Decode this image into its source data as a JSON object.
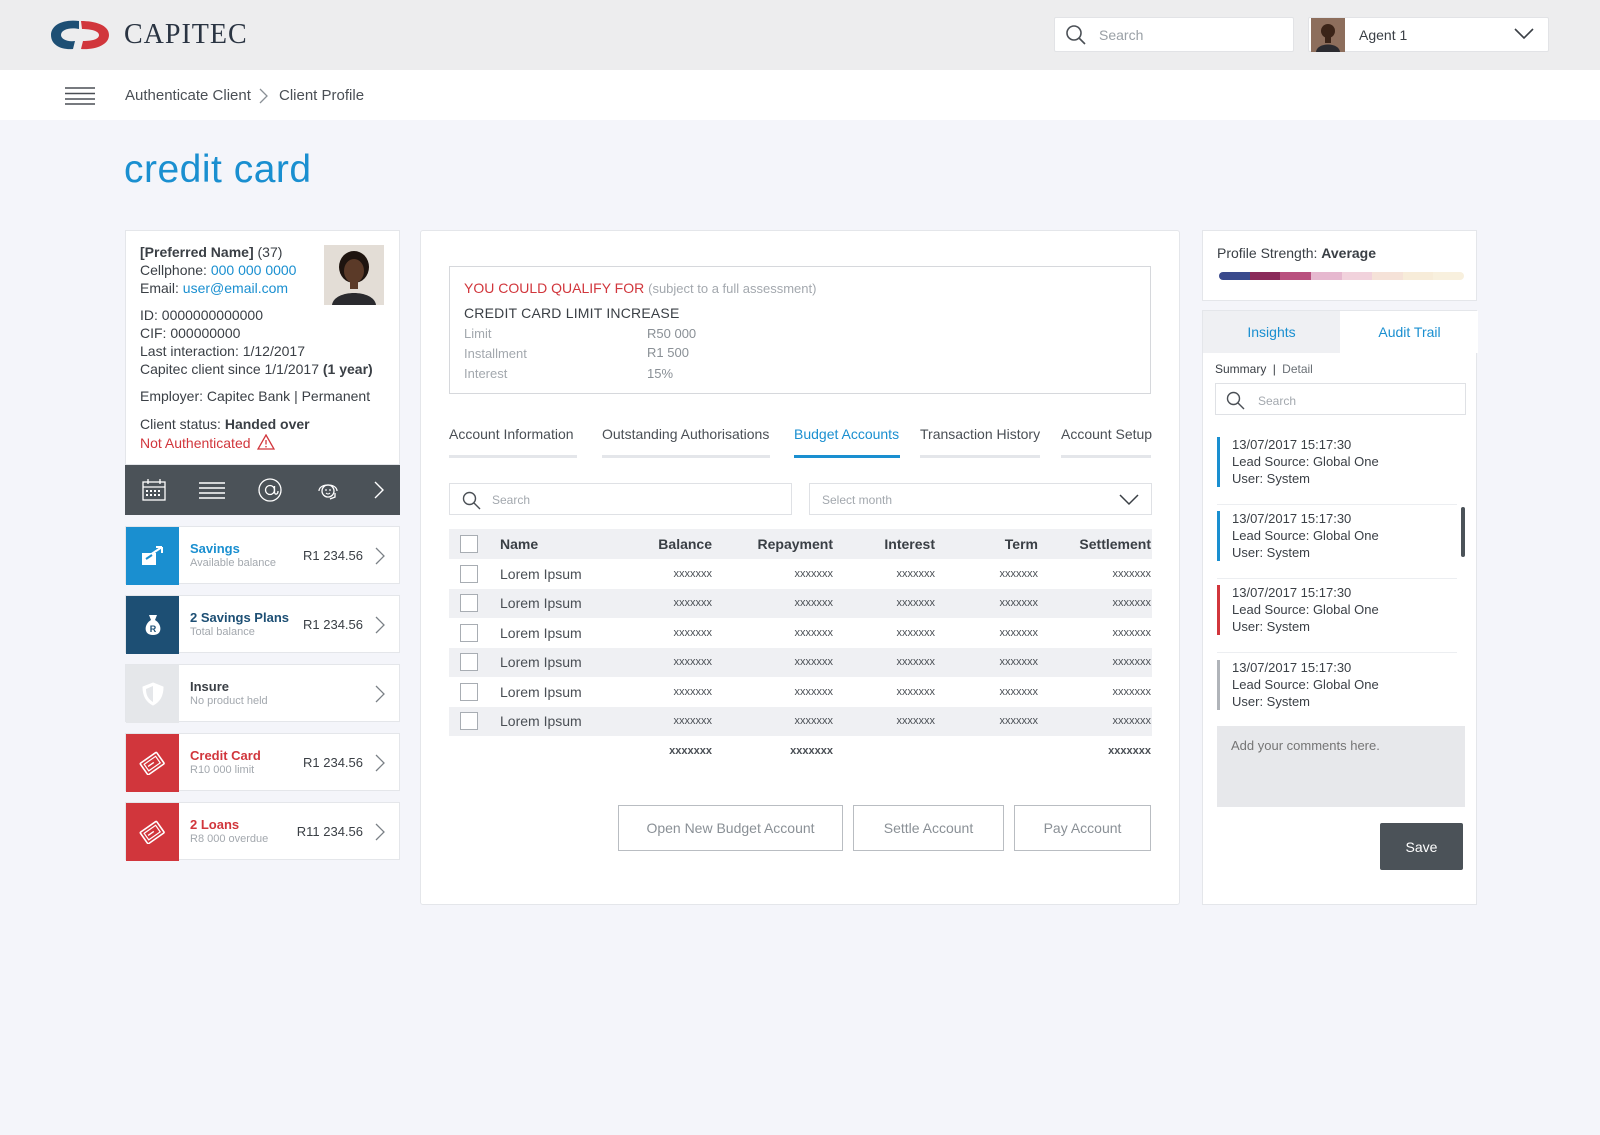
{
  "header": {
    "brand": "CAPITEC",
    "search_placeholder": "Search",
    "agent_name": "Agent 1"
  },
  "breadcrumb": [
    "Authenticate Client",
    "Client Profile"
  ],
  "page_title": "credit card",
  "client": {
    "preferred_name": "[Preferred Name]",
    "age": "(37)",
    "cellphone_label": "Cellphone:",
    "cellphone": "000 000 0000",
    "email_label": "Email:",
    "email": "user@email.com",
    "id_line": "ID: 0000000000000",
    "cif_line": "CIF: 000000000",
    "last_interaction": "Last interaction: 1/12/2017",
    "client_since": "Capitec client since 1/1/2017",
    "client_since_years": "(1 year)",
    "employer": "Employer: Capitec Bank | Permanent",
    "status_label": "Client status:",
    "status": "Handed over",
    "auth_status": "Not Authenticated"
  },
  "client_toolbar_icons": [
    "calendar-icon",
    "list-icon",
    "at-icon",
    "support-icon",
    "chevron-right-icon"
  ],
  "products": [
    {
      "name": "Savings",
      "sub": "Available balance",
      "amount": "R1 234.56",
      "color": "#1a8fd0",
      "icon": "transfer-icon"
    },
    {
      "name": "2 Savings Plans",
      "sub": "Total balance",
      "amount": "R1 234.56",
      "color": "#1d4f74",
      "icon": "money-bag-icon"
    },
    {
      "name": "Insure",
      "sub": "No product held",
      "amount": "",
      "color": "#3a3f45",
      "icon": "shield-icon"
    },
    {
      "name": "Credit Card",
      "sub": "R10 000 limit",
      "amount": "R1 234.56",
      "color": "#d1363c",
      "icon": "card-icon"
    },
    {
      "name": "2 Loans",
      "sub": "R8 000 overdue",
      "amount": "R11 234.56",
      "color": "#d1363c",
      "icon": "card-icon"
    }
  ],
  "qualify": {
    "title": "YOU COULD QUALIFY FOR",
    "note": "(subject to a full assessment)",
    "heading": "CREDIT CARD LIMIT INCREASE",
    "rows": [
      {
        "label": "Limit",
        "value": "R50 000"
      },
      {
        "label": "Installment",
        "value": "R1 500"
      },
      {
        "label": "Interest",
        "value": "15%"
      }
    ]
  },
  "tabs": [
    "Account Information",
    "Outstanding Authorisations",
    "Budget Accounts",
    "Transaction History",
    "Account Setup"
  ],
  "active_tab": "Budget Accounts",
  "table": {
    "search_placeholder": "Search",
    "month_placeholder": "Select month",
    "columns": [
      "Name",
      "Balance",
      "Repayment",
      "Interest",
      "Term",
      "Settlement"
    ],
    "rows": [
      [
        "Lorem Ipsum",
        "xxxxxxx",
        "xxxxxxx",
        "xxxxxxx",
        "xxxxxxx",
        "xxxxxxx"
      ],
      [
        "Lorem Ipsum",
        "xxxxxxx",
        "xxxxxxx",
        "xxxxxxx",
        "xxxxxxx",
        "xxxxxxx"
      ],
      [
        "Lorem Ipsum",
        "xxxxxxx",
        "xxxxxxx",
        "xxxxxxx",
        "xxxxxxx",
        "xxxxxxx"
      ],
      [
        "Lorem Ipsum",
        "xxxxxxx",
        "xxxxxxx",
        "xxxxxxx",
        "xxxxxxx",
        "xxxxxxx"
      ],
      [
        "Lorem Ipsum",
        "xxxxxxx",
        "xxxxxxx",
        "xxxxxxx",
        "xxxxxxx",
        "xxxxxxx"
      ],
      [
        "Lorem Ipsum",
        "xxxxxxx",
        "xxxxxxx",
        "xxxxxxx",
        "xxxxxxx",
        "xxxxxxx"
      ]
    ],
    "totals": {
      "balance": "xxxxxxx",
      "repayment": "xxxxxxx",
      "settlement": "xxxxxxx"
    }
  },
  "actions": {
    "open": "Open New Budget Account",
    "settle": "Settle Account",
    "pay": "Pay Account"
  },
  "profile_strength": {
    "label": "Profile Strength:",
    "value": "Average"
  },
  "right_tabs": {
    "insights": "Insights",
    "audit": "Audit Trail"
  },
  "audit": {
    "summary": "Summary",
    "detail": "Detail",
    "search_placeholder": "Search",
    "entries": [
      {
        "timestamp": "13/07/2017  15:17:30",
        "source": "Lead Source: Global One",
        "user": "User: System",
        "color": "#1a8fd0"
      },
      {
        "timestamp": "13/07/2017  15:17:30",
        "source": "Lead Source: Global One",
        "user": "User: System",
        "color": "#1a8fd0"
      },
      {
        "timestamp": "13/07/2017  15:17:30",
        "source": "Lead Source: Global One",
        "user": "User: System",
        "color": "#d1363c"
      },
      {
        "timestamp": "13/07/2017  15:17:30",
        "source": "Lead Source: Global One",
        "user": "User: System",
        "color": "#b0b4b9"
      }
    ],
    "comment_placeholder": "Add your comments here.",
    "save": "Save"
  }
}
